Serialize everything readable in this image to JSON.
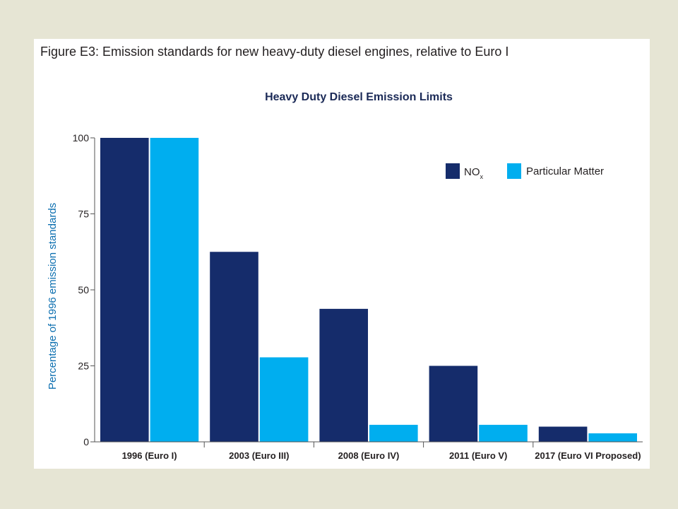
{
  "figure_caption": "Figure E3: Emission standards for new heavy-duty diesel engines, relative to Euro I",
  "colors": {
    "nox": "#152c6b",
    "pm": "#00aeef",
    "background": "#e6e5d4",
    "panel": "#ffffff"
  },
  "chart_data": {
    "type": "bar",
    "title": "Heavy Duty Diesel Emission Limits",
    "xlabel": "",
    "ylabel": "Percentage of 1996 emission standards",
    "ylim": [
      0,
      100
    ],
    "yticks": [
      0,
      25,
      50,
      75,
      100
    ],
    "categories": [
      "1996 (Euro I)",
      "2003 (Euro III)",
      "2008 (Euro IV)",
      "2011 (Euro V)",
      "2017 (Euro VI Proposed)"
    ],
    "series": [
      {
        "name": "NO",
        "name_subscript": "x",
        "color": "#152c6b",
        "values": [
          100,
          62.5,
          43.75,
          25,
          5
        ]
      },
      {
        "name": "Particular Matter",
        "color": "#00aeef",
        "values": [
          100,
          27.8,
          5.6,
          5.6,
          2.8
        ]
      }
    ],
    "legend_position": "top-right",
    "grid": false
  }
}
